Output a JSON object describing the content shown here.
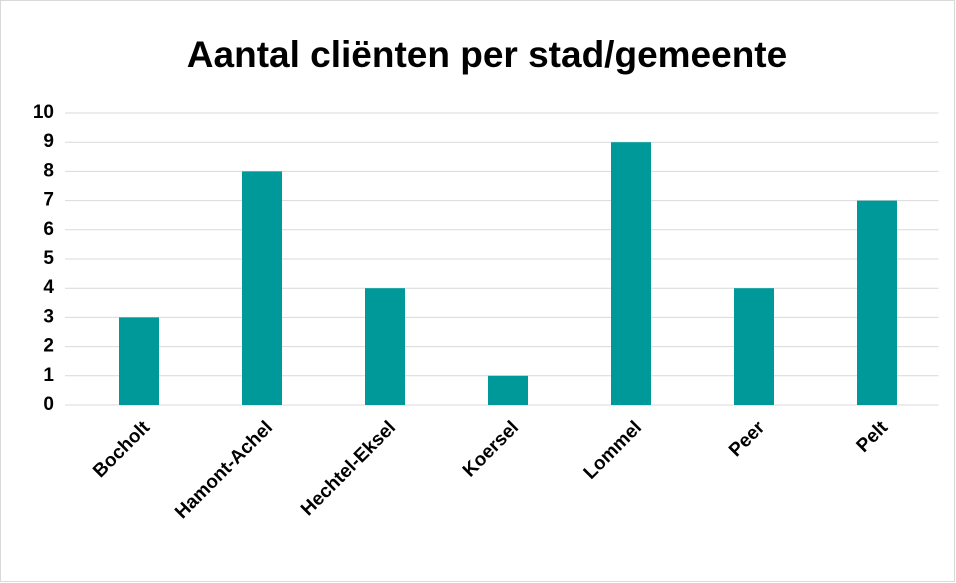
{
  "chart_data": {
    "type": "bar",
    "title": "Aantal cliënten per stad/gemeente",
    "categories": [
      "Bocholt",
      "Hamont-Achel",
      "Hechtel-Eksel",
      "Koersel",
      "Lommel",
      "Peer",
      "Pelt"
    ],
    "values": [
      3,
      8,
      4,
      1,
      9,
      4,
      7
    ],
    "color": "#009999",
    "ylim": [
      0,
      10
    ],
    "yticks": [
      0,
      1,
      2,
      3,
      4,
      5,
      6,
      7,
      8,
      9,
      10
    ],
    "grid": true
  }
}
